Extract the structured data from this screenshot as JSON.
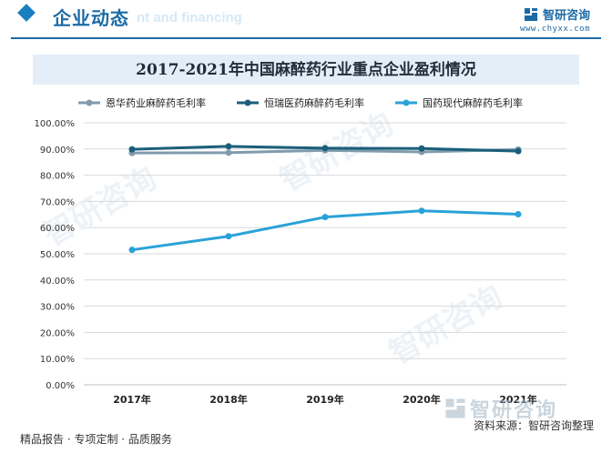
{
  "header": {
    "section_title": "企业动态",
    "ghost_text": "nt and financing",
    "brand_name": "智研咨询",
    "brand_url": "www.chyxx.com"
  },
  "footer": {
    "slogan": "精品报告 · 专项定制 · 品质服务",
    "source": "资料来源：智研咨询整理",
    "watermark_brand": "智研咨询"
  },
  "colors": {
    "accent": "#1b6aa5",
    "series": [
      "#7f9bad",
      "#1a5f7a",
      "#2aa2d8"
    ]
  },
  "chart_data": {
    "type": "line",
    "title": "2017-2021年中国麻醉药行业重点企业盈利情况",
    "categories": [
      "2017年",
      "2018年",
      "2019年",
      "2020年",
      "2021年"
    ],
    "series": [
      {
        "name": "恩华药业麻醉药毛利率",
        "values": [
          88.5,
          88.6,
          89.5,
          88.9,
          89.8
        ]
      },
      {
        "name": "恒瑞医药麻醉药毛利率",
        "values": [
          89.9,
          91.0,
          90.3,
          90.2,
          89.2
        ]
      },
      {
        "name": "国药现代麻醉药毛利率",
        "values": [
          51.5,
          56.7,
          64.0,
          66.4,
          65.1
        ]
      }
    ],
    "ylim": [
      0,
      100
    ],
    "yticks": [
      "0.00%",
      "10.00%",
      "20.00%",
      "30.00%",
      "40.00%",
      "50.00%",
      "60.00%",
      "70.00%",
      "80.00%",
      "90.00%",
      "100.00%"
    ],
    "xlabel": "",
    "ylabel": "",
    "grid": true,
    "legend": "top-left"
  }
}
